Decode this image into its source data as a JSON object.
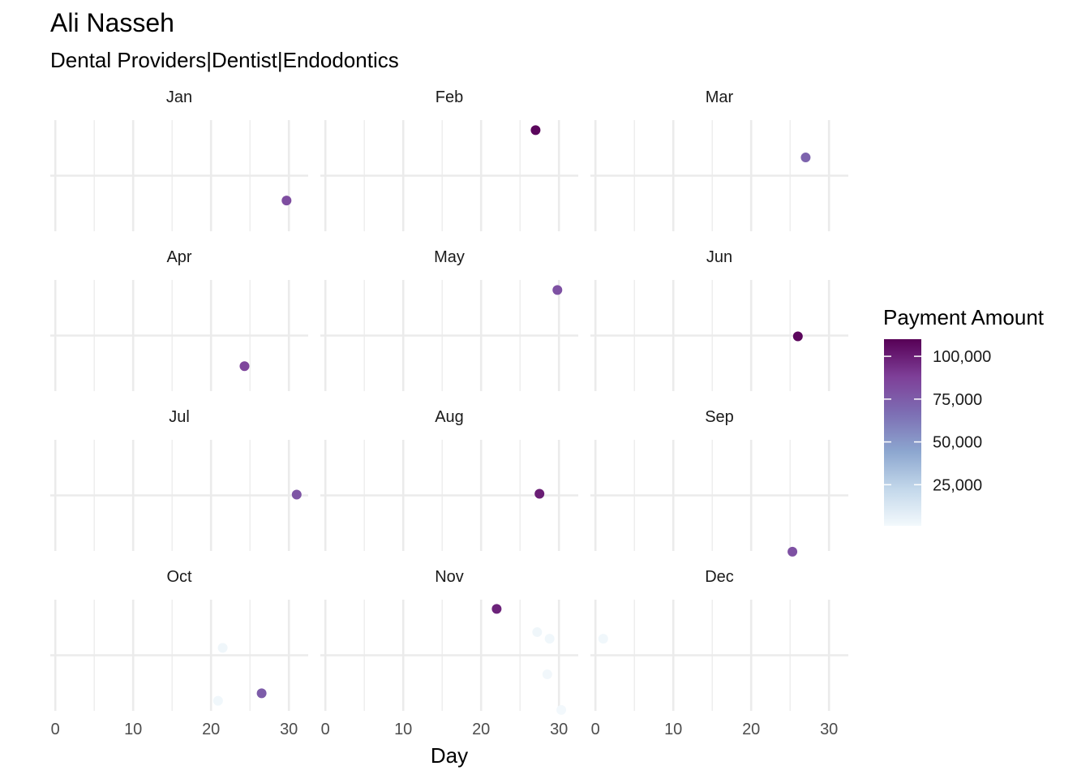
{
  "chart_data": {
    "type": "scatter",
    "title": "Ali Nasseh",
    "subtitle": "Dental Providers|Dentist|Endodontics",
    "xlabel": "Day",
    "ylabel": "",
    "xlim": [
      0,
      32
    ],
    "x_ticks": [
      0,
      10,
      20,
      30
    ],
    "x_tick_labels": [
      "0",
      "10",
      "20",
      "30"
    ],
    "grid": true,
    "y_axis": "jittered, no labels",
    "facet_by": "month",
    "facet_columns": 3,
    "panels": [
      {
        "label": "Jan",
        "points": [
          {
            "day": 29.7,
            "jitter": -0.3,
            "amount": 82000
          }
        ]
      },
      {
        "label": "Feb",
        "points": [
          {
            "day": 27.0,
            "jitter": 0.55,
            "amount": 108000
          }
        ]
      },
      {
        "label": "Mar",
        "points": [
          {
            "day": 27.0,
            "jitter": 0.22,
            "amount": 72000
          }
        ]
      },
      {
        "label": "Apr",
        "points": [
          {
            "day": 24.3,
            "jitter": -0.37,
            "amount": 85000
          }
        ]
      },
      {
        "label": "May",
        "points": [
          {
            "day": 29.8,
            "jitter": 0.55,
            "amount": 80000
          }
        ]
      },
      {
        "label": "Jun",
        "points": [
          {
            "day": 26.0,
            "jitter": -0.01,
            "amount": 108000
          }
        ]
      },
      {
        "label": "Jul",
        "points": [
          {
            "day": 31.0,
            "jitter": 0.01,
            "amount": 78000
          }
        ]
      },
      {
        "label": "Aug",
        "points": [
          {
            "day": 27.5,
            "jitter": 0.02,
            "amount": 100000
          }
        ]
      },
      {
        "label": "Sep",
        "points": [
          {
            "day": 25.3,
            "jitter": -0.68,
            "amount": 80000
          }
        ]
      },
      {
        "label": "Oct",
        "points": [
          {
            "day": 21.5,
            "jitter": 0.09,
            "amount": 3000
          },
          {
            "day": 20.9,
            "jitter": -0.55,
            "amount": 2500
          },
          {
            "day": 26.5,
            "jitter": -0.46,
            "amount": 75000
          }
        ]
      },
      {
        "label": "Nov",
        "points": [
          {
            "day": 22.0,
            "jitter": 0.56,
            "amount": 98000
          },
          {
            "day": 27.2,
            "jitter": 0.28,
            "amount": 3000
          },
          {
            "day": 28.8,
            "jitter": 0.2,
            "amount": 2500
          },
          {
            "day": 28.5,
            "jitter": -0.23,
            "amount": 2000
          },
          {
            "day": 30.3,
            "jitter": -0.66,
            "amount": 1500
          }
        ]
      },
      {
        "label": "Dec",
        "points": [
          {
            "day": 1.0,
            "jitter": 0.2,
            "amount": 2500
          }
        ]
      }
    ],
    "legend": {
      "title": "Payment Amount",
      "position": "right",
      "min": 1000,
      "max": 110000,
      "breaks": [
        100000,
        75000,
        50000,
        25000
      ],
      "break_labels": [
        "100,000",
        "75,000",
        "50,000",
        "25,000"
      ],
      "colors": [
        "#f3f9fc",
        "#c2d7ea",
        "#8ca6cf",
        "#7d6fb4",
        "#7e3f98",
        "#570056"
      ]
    }
  }
}
